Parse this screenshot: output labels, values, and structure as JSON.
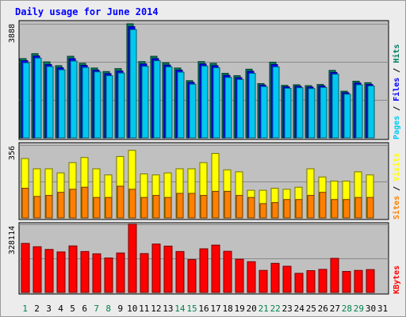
{
  "chart_data": {
    "type": "bar",
    "title": "Daily usage for June 2014",
    "categories": [
      "1",
      "2",
      "3",
      "4",
      "5",
      "6",
      "7",
      "8",
      "9",
      "10",
      "11",
      "12",
      "13",
      "14",
      "15",
      "16",
      "17",
      "18",
      "19",
      "20",
      "21",
      "22",
      "23",
      "24",
      "25",
      "26",
      "27",
      "28",
      "29",
      "30",
      "31"
    ],
    "weekend_days": [
      "1",
      "7",
      "8",
      "14",
      "15",
      "21",
      "22",
      "28",
      "29"
    ],
    "panels": [
      {
        "id": "hits-files-pages",
        "max_label": "3888",
        "ylim": [
          0,
          3888
        ],
        "axis_labels": [
          {
            "text": "Pages",
            "color": "#00c8f0"
          },
          {
            "text": " / ",
            "color": "#000000"
          },
          {
            "text": "Files",
            "color": "#0000ff"
          },
          {
            "text": " / ",
            "color": "#000000"
          },
          {
            "text": "Hits",
            "color": "#007f5f"
          }
        ],
        "series": [
          {
            "name": "Hits",
            "color": "#007f5f",
            "values": [
              2700,
              2870,
              2590,
              2460,
              2780,
              2540,
              2380,
              2260,
              2360,
              3888,
              2600,
              2780,
              2560,
              2380,
              1950,
              2600,
              2540,
              2200,
              2120,
              2340,
              1850,
              2580,
              1790,
              1810,
              1780,
              1820,
              2300,
              1590,
              1930,
              1880,
              0
            ]
          },
          {
            "name": "Files",
            "color": "#0000ff",
            "values": [
              2630,
              2790,
              2500,
              2390,
              2700,
              2470,
              2310,
              2190,
              2280,
              3790,
              2520,
              2700,
              2480,
              2310,
              1890,
              2520,
              2460,
              2130,
              2050,
              2270,
              1800,
              2500,
              1740,
              1760,
              1730,
              1770,
              2230,
              1540,
              1870,
              1820,
              0
            ]
          },
          {
            "name": "Pages",
            "color": "#00c8f0",
            "values": [
              2560,
              2720,
              2430,
              2320,
              2620,
              2400,
              2250,
              2120,
              2210,
              3690,
              2440,
              2630,
              2420,
              2240,
              1830,
              2450,
              2390,
              2060,
              1990,
              2200,
              1750,
              2420,
              1690,
              1710,
              1680,
              1720,
              2170,
              1490,
              1810,
              1770,
              0
            ]
          }
        ]
      },
      {
        "id": "visits-sites",
        "max_label": "356",
        "ylim": [
          0,
          356
        ],
        "axis_labels": [
          {
            "text": "Sites",
            "color": "#ff8000"
          },
          {
            "text": " / ",
            "color": "#000000"
          },
          {
            "text": "Visits",
            "color": "#ffff00"
          }
        ],
        "series": [
          {
            "name": "Visits",
            "color": "#ffff00",
            "values": [
              290,
              240,
              240,
              220,
              270,
              295,
              240,
              210,
              300,
              330,
              215,
              210,
              220,
              240,
              240,
              270,
              315,
              235,
              225,
              135,
              135,
              145,
              140,
              150,
              240,
              200,
              180,
              180,
              225,
              210,
              0
            ]
          },
          {
            "name": "Sites",
            "color": "#ff8000",
            "values": [
              145,
              105,
              110,
              125,
              140,
              150,
              100,
              100,
              155,
              140,
              100,
              110,
              100,
              120,
              120,
              110,
              130,
              130,
              110,
              100,
              70,
              75,
              90,
              90,
              110,
              125,
              90,
              90,
              100,
              100,
              0
            ]
          }
        ]
      },
      {
        "id": "kbytes",
        "max_label": "328114",
        "ylim": [
          0,
          328114
        ],
        "axis_labels": [
          {
            "text": "KBytes",
            "color": "#ff0000"
          }
        ],
        "series": [
          {
            "name": "KBytes",
            "color": "#ff0000",
            "values": [
              236000,
              220000,
              207000,
              195000,
              224000,
              197000,
              186000,
              166000,
              190000,
              328114,
              187000,
              233000,
              223000,
              197000,
              158000,
              210000,
              228000,
              198000,
              160000,
              148000,
              106000,
              140000,
              126000,
              92000,
              105000,
              111000,
              164000,
              101000,
              106000,
              110000,
              0
            ]
          }
        ]
      }
    ]
  }
}
